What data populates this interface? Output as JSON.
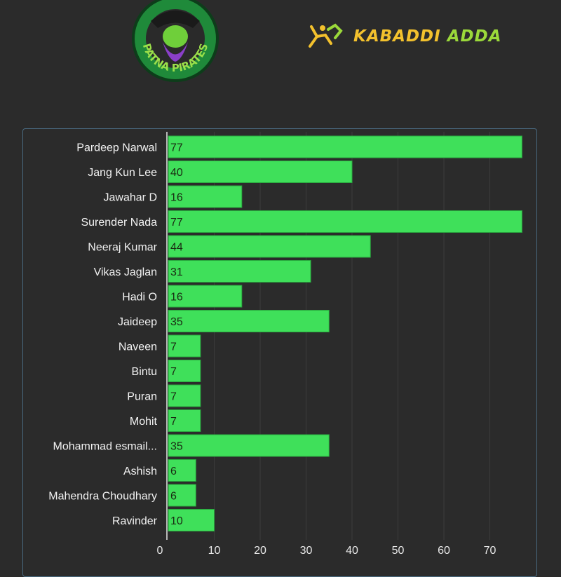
{
  "header": {
    "team_logo_text": "PATNA PIRATES",
    "brand_word1": "KABADDI",
    "brand_word2": "ADDA"
  },
  "colors": {
    "background": "#2b2b2b",
    "bar": "#3fe05a",
    "bar_border": "#2aa83f",
    "brand_yellow": "#f3c12d",
    "brand_green": "#9bd93a"
  },
  "chart_data": {
    "type": "bar",
    "orientation": "horizontal",
    "categories": [
      "Pardeep Narwal",
      "Jang Kun Lee",
      "Jawahar D",
      "Surender Nada",
      "Neeraj Kumar",
      "Vikas Jaglan",
      "Hadi O",
      "Jaideep",
      "Naveen",
      "Bintu",
      "Puran",
      "Mohit",
      "Mohammad esmail...",
      "Ashish",
      "Mahendra Choudhary",
      "Ravinder"
    ],
    "values": [
      77,
      40,
      16,
      77,
      44,
      31,
      16,
      35,
      7,
      7,
      7,
      7,
      35,
      6,
      6,
      10
    ],
    "xticks": [
      0,
      10,
      20,
      30,
      40,
      50,
      60,
      70
    ],
    "xlim": [
      0,
      77
    ],
    "grid": true,
    "title": "",
    "xlabel": "",
    "ylabel": ""
  }
}
